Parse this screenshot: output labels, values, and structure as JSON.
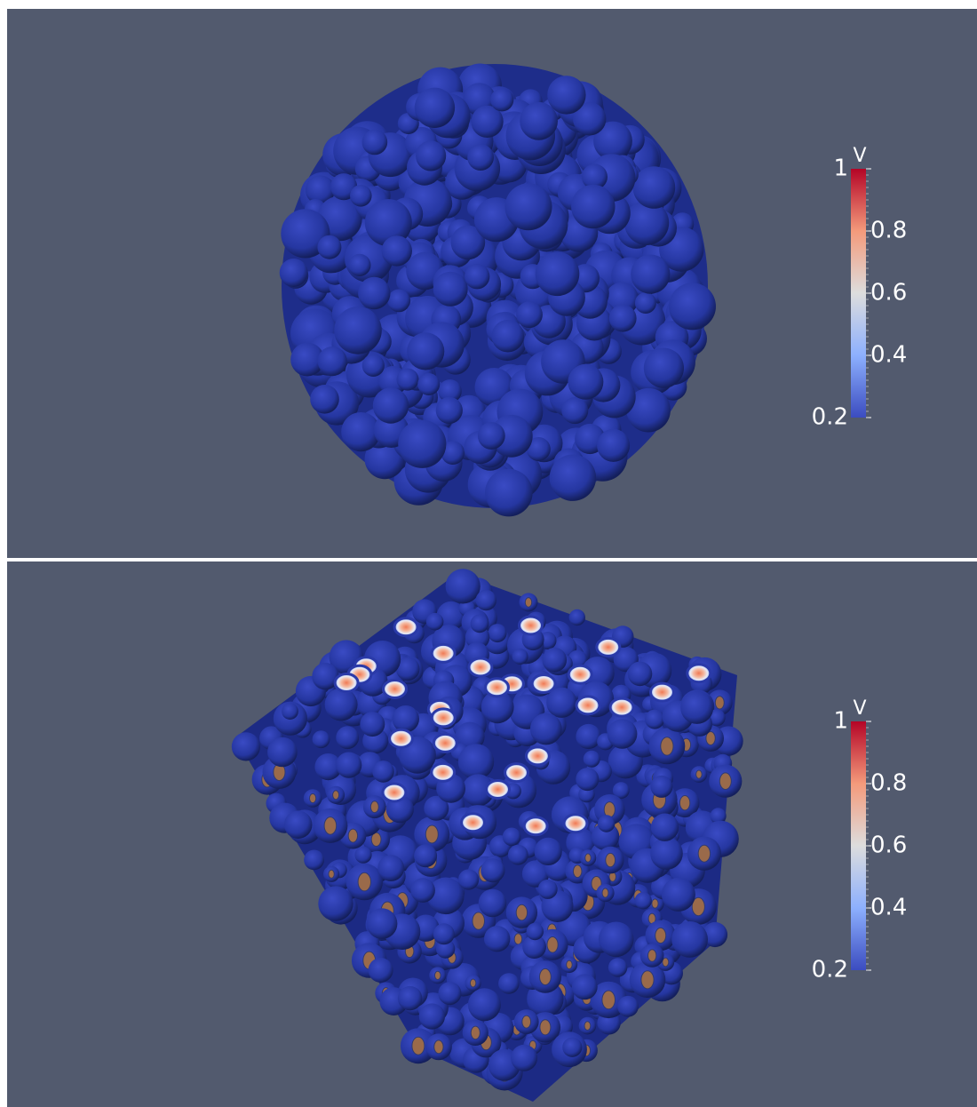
{
  "panels": [
    {
      "legend": {
        "title": "V",
        "range": [
          0.2,
          1
        ],
        "ticks": [
          1,
          0.8,
          0.6,
          0.4,
          0.2
        ]
      }
    },
    {
      "legend": {
        "title": "V",
        "range": [
          0.2,
          1
        ],
        "ticks": [
          1,
          0.8,
          0.6,
          0.4,
          0.2
        ]
      }
    }
  ]
}
